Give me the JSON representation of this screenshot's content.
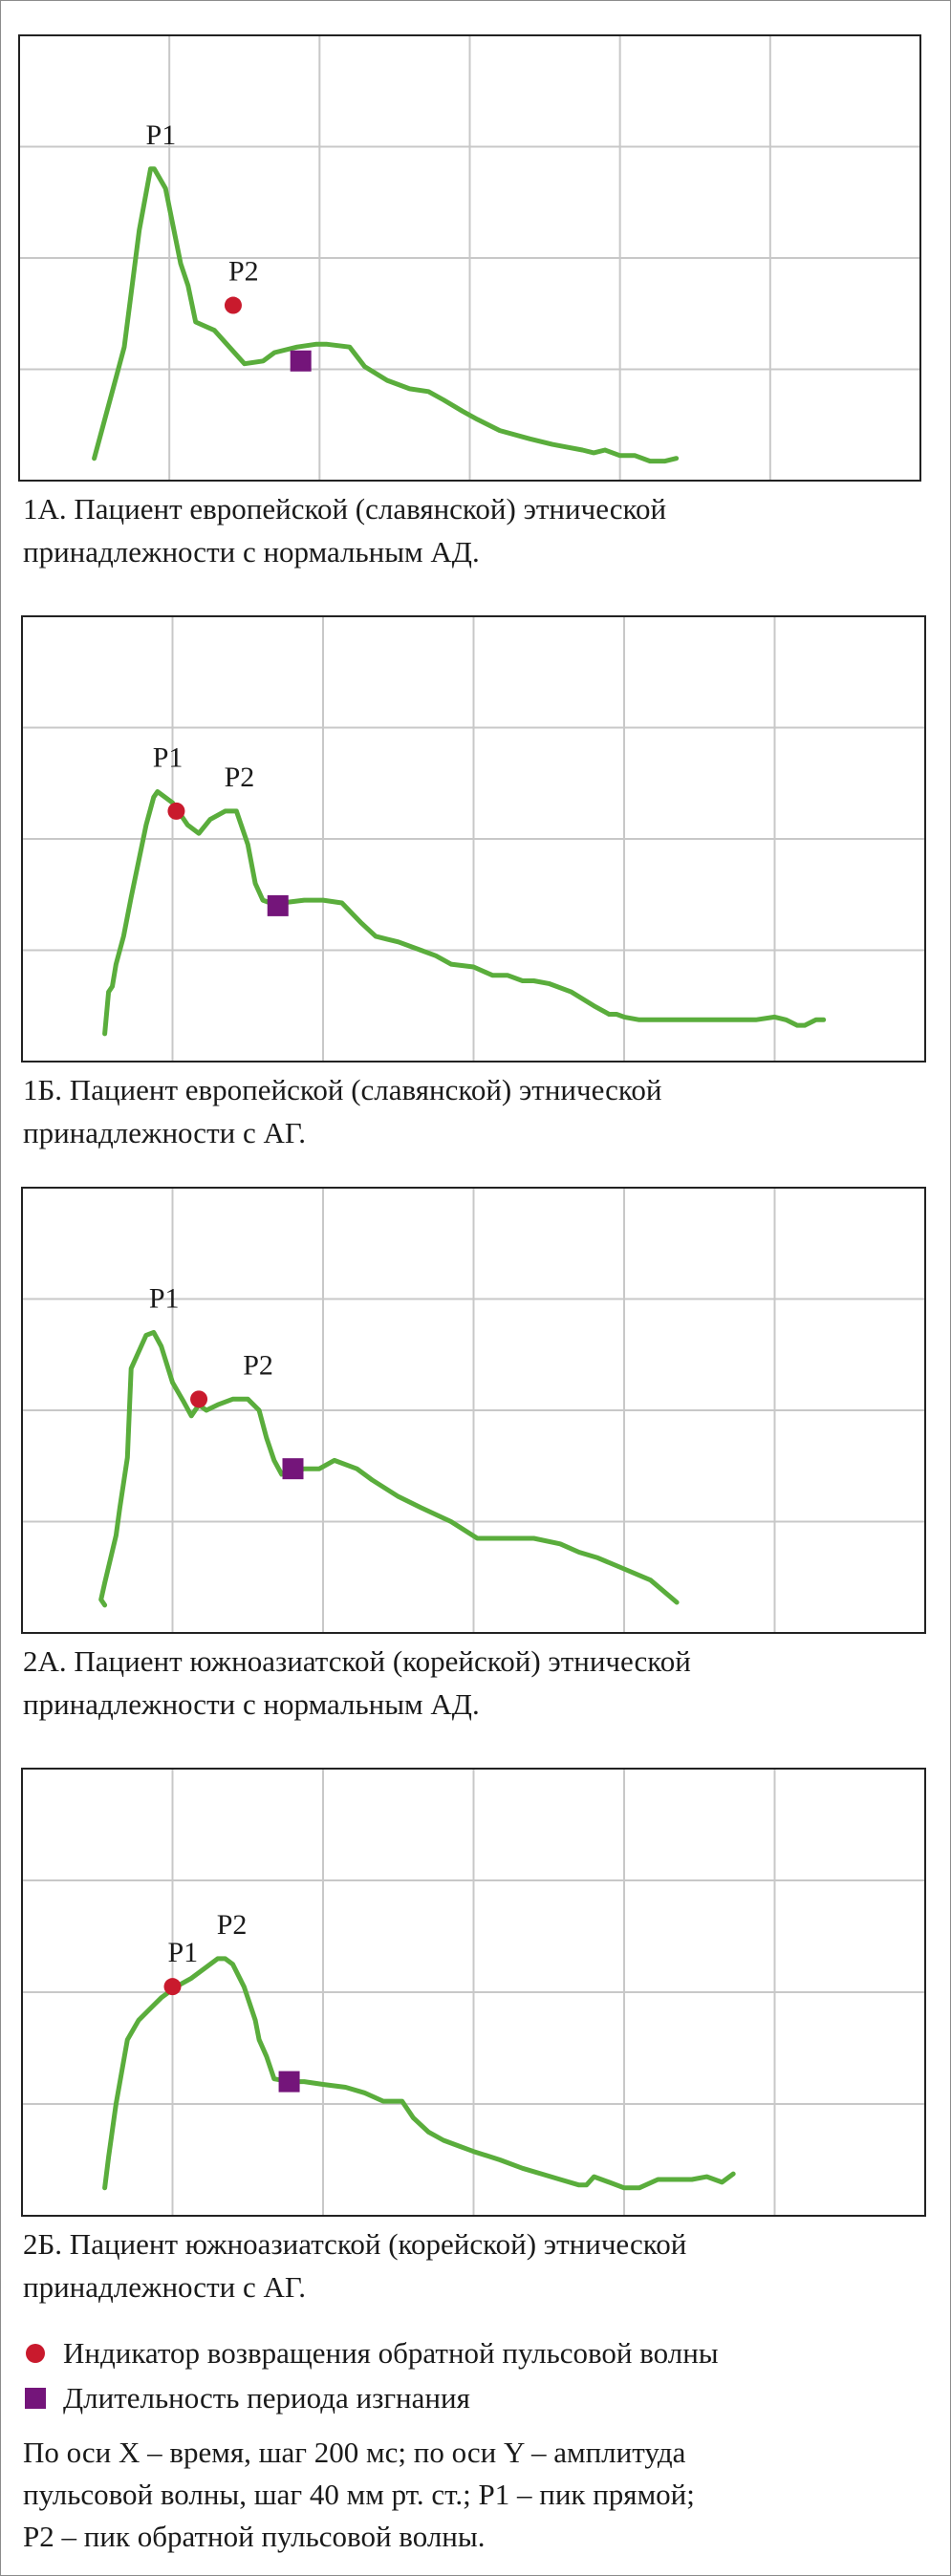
{
  "colors": {
    "curve": "#5aad3c",
    "reflection_marker": "#c91a2d",
    "ejection_marker": "#74157a",
    "grid": "#c8c8c8",
    "plot_border": "#222222"
  },
  "panels": [
    {
      "id": "1A",
      "caption_lines": [
        "1А. Пациент европейской (славянской) этнической",
        "принадлежности с нормальным АД."
      ],
      "labels": {
        "p1": "P1",
        "p2": "P2"
      }
    },
    {
      "id": "1B",
      "caption_lines": [
        "1Б. Пациент европейской (славянской) этнической",
        "принадлежности с АГ."
      ],
      "labels": {
        "p1": "P1",
        "p2": "P2"
      }
    },
    {
      "id": "2A",
      "caption_lines": [
        "2А. Пациент южноазиатской (корейской) этнической",
        "принадлежности с нормальным АД."
      ],
      "labels": {
        "p1": "P1",
        "p2": "P2"
      }
    },
    {
      "id": "2B",
      "caption_lines": [
        "2Б. Пациент южноазиатской (корейской) этнической",
        "принадлежности с АГ."
      ],
      "labels": {
        "p1": "P1",
        "p2": "P2"
      }
    }
  ],
  "legend": {
    "reflection": {
      "label": "Индикатор возвращения обратной пульсовой волны",
      "icon": "red-dot-icon"
    },
    "ejection": {
      "label": "Длительность периода изгнания",
      "icon": "purple-square-icon"
    }
  },
  "note_lines": [
    "По оси X – время, шаг 200 мс; по оси Y – амплитуда",
    "пульсовой волны, шаг 40 мм рт. ст.; P1 – пик прямой;",
    "P2 – пик обратной пульсовой волны."
  ],
  "chart_data": [
    {
      "type": "line",
      "title": "1А. Пациент европейской (славянской) этнической принадлежности с нормальным АД.",
      "xlabel": "время, шаг 200 мс",
      "ylabel": "амплитуда пульсовой волны, шаг 40 мм рт. ст.",
      "xlim": [
        0,
        1200
      ],
      "ylim": [
        0,
        160
      ],
      "grid": true,
      "series": [
        {
          "x": [
            100,
            130,
            140,
            160,
            175,
            180,
            195,
            215,
            225,
            235,
            260,
            280,
            300,
            325,
            340,
            370,
            395,
            410,
            440,
            460,
            490,
            520,
            545,
            565,
            590,
            610,
            640,
            680,
            710,
            730,
            750,
            765,
            780,
            800,
            820,
            840,
            860,
            875
          ],
          "y": [
            8,
            38,
            48,
            90,
            112,
            112,
            105,
            78,
            70,
            57,
            54,
            48,
            42,
            43,
            46,
            48,
            49,
            49,
            48,
            41,
            36,
            33,
            32,
            29,
            25,
            22,
            18,
            15,
            13,
            12,
            11,
            10,
            11,
            9,
            9,
            7,
            7,
            8
          ]
        }
      ],
      "markers": [
        {
          "name": "P1",
          "x": 175,
          "y": 112,
          "kind": "peak"
        },
        {
          "name": "P2",
          "x": 285,
          "y": 63,
          "kind": "reflection_return",
          "marker": "red-dot"
        },
        {
          "name": "ejection_end",
          "x": 375,
          "y": 43,
          "kind": "ejection_period",
          "marker": "purple-square"
        }
      ]
    },
    {
      "type": "line",
      "title": "1Б. Пациент европейской (славянской) этнической принадлежности с АГ.",
      "xlabel": "время, шаг 200 мс",
      "ylabel": "амплитуда пульсовой волны, шаг 40 мм рт. ст.",
      "xlim": [
        0,
        1200
      ],
      "ylim": [
        0,
        160
      ],
      "grid": true,
      "series": [
        {
          "x": [
            110,
            115,
            120,
            125,
            135,
            145,
            165,
            175,
            180,
            190,
            200,
            220,
            235,
            250,
            270,
            285,
            300,
            310,
            320,
            330,
            345,
            375,
            400,
            425,
            450,
            470,
            485,
            500,
            530,
            550,
            570,
            600,
            625,
            645,
            665,
            680,
            700,
            730,
            760,
            780,
            790,
            800,
            820,
            850,
            875,
            905,
            930,
            950,
            975,
            1000,
            1015,
            1030,
            1040,
            1055,
            1065
          ],
          "y": [
            10,
            25,
            27,
            35,
            45,
            59,
            85,
            95,
            97,
            95,
            93,
            85,
            82,
            87,
            90,
            90,
            78,
            64,
            58,
            57,
            57,
            58,
            58,
            57,
            50,
            45,
            44,
            43,
            40,
            38,
            35,
            34,
            31,
            31,
            29,
            29,
            28,
            25,
            20,
            17,
            17,
            16,
            15,
            15,
            15,
            15,
            15,
            15,
            15,
            16,
            15,
            13,
            13,
            15,
            15
          ]
        }
      ],
      "markers": [
        {
          "name": "P1",
          "x": 180,
          "y": 97,
          "kind": "peak"
        },
        {
          "name": "P2",
          "x": 275,
          "y": 90,
          "kind": "peak"
        },
        {
          "name": "reflection_return",
          "x": 205,
          "y": 90,
          "kind": "reflection_return",
          "marker": "red-dot"
        },
        {
          "name": "ejection_end",
          "x": 340,
          "y": 56,
          "kind": "ejection_period",
          "marker": "purple-square"
        }
      ]
    },
    {
      "type": "line",
      "title": "2А. Пациент южноазиатской (корейской) этнической принадлежности с нормальным АД.",
      "xlabel": "время, шаг 200 мс",
      "ylabel": "амплитуда пульсовой волны, шаг 40 мм рт. ст.",
      "xlim": [
        0,
        1200
      ],
      "ylim": [
        0,
        160
      ],
      "grid": true,
      "series": [
        {
          "x": [
            110,
            105,
            110,
            125,
            130,
            140,
            145,
            165,
            175,
            185,
            200,
            215,
            225,
            235,
            245,
            260,
            280,
            300,
            315,
            325,
            335,
            345,
            360,
            375,
            395,
            415,
            445,
            465,
            500,
            530,
            570,
            605,
            640,
            680,
            715,
            740,
            765,
            800,
            835,
            870
          ],
          "y": [
            10,
            12,
            18,
            35,
            45,
            63,
            95,
            107,
            108,
            103,
            90,
            83,
            78,
            82,
            80,
            82,
            84,
            84,
            80,
            70,
            62,
            57,
            58,
            59,
            59,
            62,
            59,
            55,
            49,
            45,
            40,
            34,
            34,
            34,
            32,
            29,
            27,
            23,
            19,
            11
          ]
        }
      ],
      "markers": [
        {
          "name": "P1",
          "x": 175,
          "y": 108,
          "kind": "peak"
        },
        {
          "name": "P2",
          "x": 300,
          "y": 84,
          "kind": "peak"
        },
        {
          "name": "reflection_return",
          "x": 235,
          "y": 84,
          "kind": "reflection_return",
          "marker": "red-dot"
        },
        {
          "name": "ejection_end",
          "x": 360,
          "y": 59,
          "kind": "ejection_period",
          "marker": "purple-square"
        }
      ]
    },
    {
      "type": "line",
      "title": "2Б. Пациент южноазиатской (корейской) этнической принадлежности с АГ.",
      "xlabel": "время, шаг 200 мс",
      "ylabel": "амплитуда пульсовой волны, шаг 40 мм рт. ст.",
      "xlim": [
        0,
        1200
      ],
      "ylim": [
        0,
        160
      ],
      "grid": true,
      "series": [
        {
          "x": [
            110,
            115,
            125,
            140,
            155,
            170,
            185,
            205,
            225,
            240,
            260,
            270,
            280,
            295,
            310,
            315,
            325,
            335,
            355,
            375,
            400,
            430,
            455,
            480,
            505,
            520,
            540,
            560,
            580,
            600,
            635,
            665,
            690,
            715,
            740,
            750,
            760,
            780,
            800,
            820,
            845,
            870,
            890,
            910,
            930,
            945
          ],
          "y": [
            10,
            21,
            40,
            63,
            70,
            74,
            78,
            82,
            85,
            88,
            92,
            92,
            90,
            82,
            70,
            63,
            57,
            49,
            48,
            48,
            47,
            46,
            44,
            41,
            41,
            35,
            30,
            27,
            25,
            23,
            20,
            17,
            15,
            13,
            11,
            11,
            14,
            12,
            10,
            10,
            13,
            13,
            13,
            14,
            12,
            15
          ]
        }
      ],
      "markers": [
        {
          "name": "P1",
          "x": 200,
          "y": 82,
          "kind": "peak"
        },
        {
          "name": "P2",
          "x": 265,
          "y": 92,
          "kind": "peak"
        },
        {
          "name": "reflection_return",
          "x": 200,
          "y": 82,
          "kind": "reflection_return",
          "marker": "red-dot"
        },
        {
          "name": "ejection_end",
          "x": 355,
          "y": 48,
          "kind": "ejection_period",
          "marker": "purple-square"
        }
      ]
    }
  ]
}
